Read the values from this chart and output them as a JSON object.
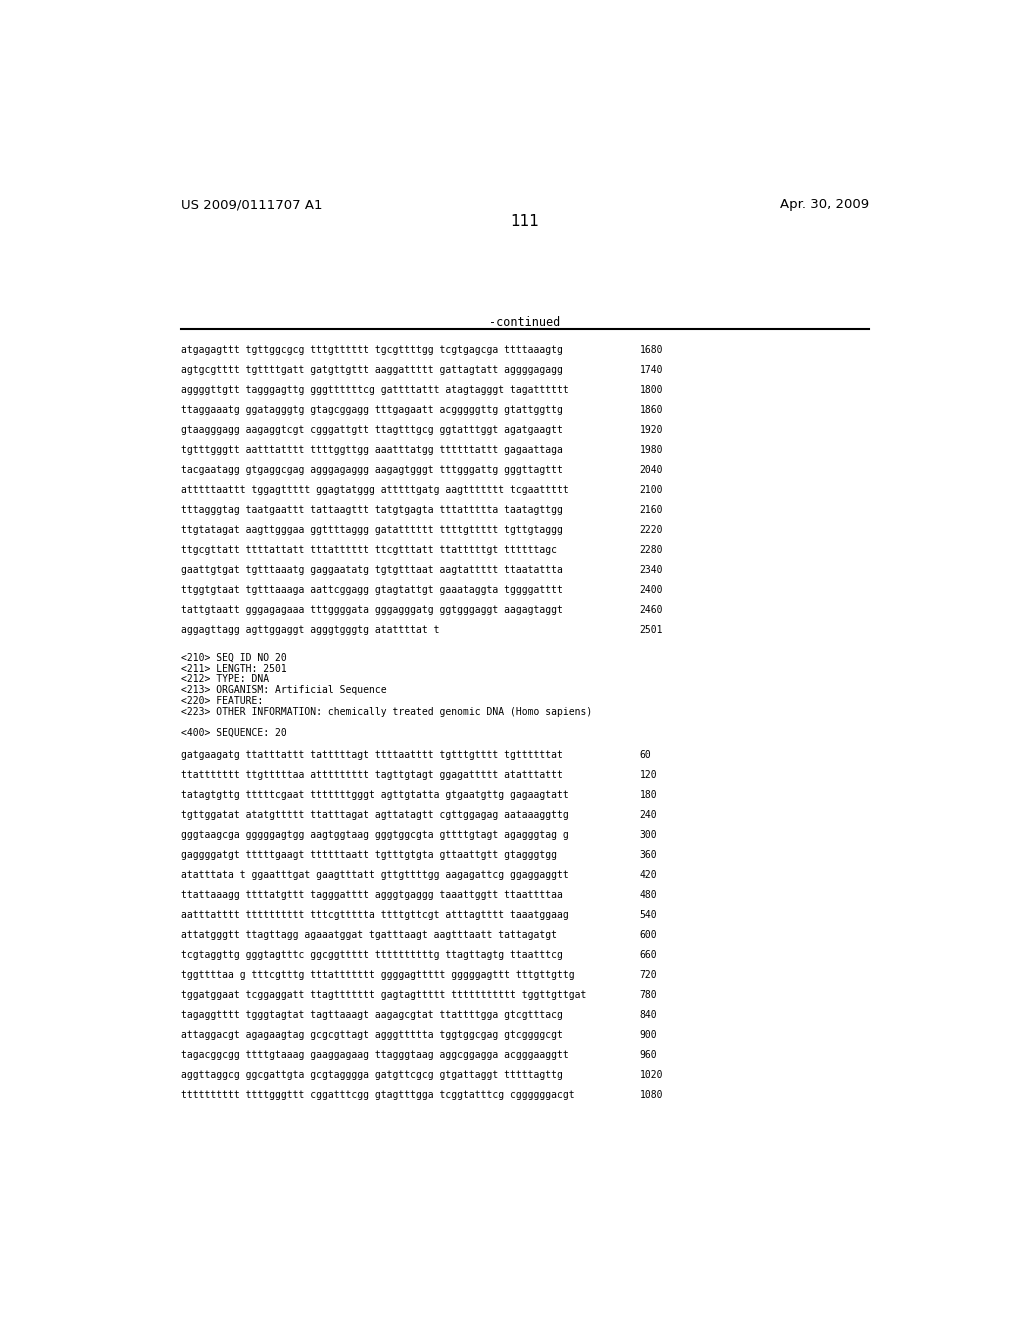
{
  "header_left": "US 2009/0111707 A1",
  "header_right": "Apr. 30, 2009",
  "page_number": "111",
  "continued_label": "-continued",
  "background_color": "#ffffff",
  "text_color": "#000000",
  "lines_section1": [
    [
      "atgagagttt tgttggcgcg tttgtttttt tgcgttttgg tcgtgagcga ttttaaagtg",
      "1680"
    ],
    [
      "agtgcgtttt tgttttgatt gatgttgttt aaggattttt gattagtatt aggggagagg",
      "1740"
    ],
    [
      "aggggttgtt tagggagttg gggttttttcg gattttattt atagtagggt tagatttttt",
      "1800"
    ],
    [
      "ttaggaaatg ggatagggtg gtagcggagg tttgagaatt acgggggttg gtattggttg",
      "1860"
    ],
    [
      "gtaagggagg aagaggtcgt cgggattgtt ttagtttgcg ggtatttggt agatgaagtt",
      "1920"
    ],
    [
      "tgtttgggtt aatttatttt ttttggttgg aaatttatgg ttttttattt gagaattaga",
      "1980"
    ],
    [
      "tacgaatagg gtgaggcgag agggagaggg aagagtgggt tttgggattg gggttagttt",
      "2040"
    ],
    [
      "atttttaattt tggagttttt ggagtatggg atttttgatg aagttttttt tcgaattttt",
      "2100"
    ],
    [
      "tttagggtag taatgaattt tattaagttt tatgtgagta tttattttta taatagttgg",
      "2160"
    ],
    [
      "ttgtatagat aagttgggaa ggttttaggg gatatttttt ttttgttttt tgttgtaggg",
      "2220"
    ],
    [
      "ttgcgttatt ttttattatt tttatttttt ttcgtttatt ttatttttgt ttttttagc",
      "2280"
    ],
    [
      "gaattgtgat tgtttaaatg gaggaatatg tgtgtttaat aagtattttt ttaatattta",
      "2340"
    ],
    [
      "ttggtgtaat tgtttaaaga aattcggagg gtagtattgt gaaataggta tggggatttt",
      "2400"
    ],
    [
      "tattgtaatt gggagagaaa tttggggata gggagggatg ggtgggaggt aagagtaggt",
      "2460"
    ],
    [
      "aggagttagg agttggaggt agggtgggtg atattttat t",
      "2501"
    ]
  ],
  "metadata_lines": [
    "<210> SEQ ID NO 20",
    "<211> LENGTH: 2501",
    "<212> TYPE: DNA",
    "<213> ORGANISM: Artificial Sequence",
    "<220> FEATURE:",
    "<223> OTHER INFORMATION: chemically treated genomic DNA (Homo sapiens)",
    "",
    "<400> SEQUENCE: 20"
  ],
  "lines_section2": [
    [
      "gatgaagatg ttatttattt tatttttagt ttttaatttt tgtttgtttt tgttttttat",
      "60"
    ],
    [
      "ttattttttt ttgtttttaa attttttttt tagttgtagt ggagattttt atatttattt",
      "120"
    ],
    [
      "tatagtgttg tttttcgaat tttttttgggt agttgtatta gtgaatgttg gagaagtatt",
      "180"
    ],
    [
      "tgttggatat atatgttttt ttatttagat agttatagtt cgttggagag aataaaggttg",
      "240"
    ],
    [
      "gggtaagcga gggggagtgg aagtggtaag gggtggcgta gttttgtagt agagggtag g",
      "300"
    ],
    [
      "gaggggatgt tttttgaagt ttttttaatt tgtttgtgta gttaattgtt gtagggtgg",
      "360"
    ],
    [
      "atatttata t ggaatttgat gaagtttatt gttgttttgg aagagattcg ggaggaggtt",
      "420"
    ],
    [
      "ttattaaagg ttttatgttt tagggatttt agggtgaggg taaattggtt ttaattttaa",
      "480"
    ],
    [
      "aatttatttt tttttttttt tttcgttttta ttttgttcgt atttagtttt taaatggaag",
      "540"
    ],
    [
      "attatgggtt ttagttagg agaaatggat tgatttaagt aagtttaatt tattagatgt",
      "600"
    ],
    [
      "tcgtaggttg gggtagtttc ggcggttttt ttttttttttg ttagttagtg ttaatttcg",
      "660"
    ],
    [
      "tggttttaa g tttcgtttg tttattttttt ggggagttttt gggggagttt tttgttgttg",
      "720"
    ],
    [
      "tggatggaat tcggaggatt ttagttttttt gagtagttttt ttttttttttt tggttgttgat",
      "780"
    ],
    [
      "tagaggtttt tgggtagtat tagttaaagt aagagcgtat ttattttgga gtcgtttacg",
      "840"
    ],
    [
      "attaggacgt agagaagtag gcgcgttagt agggttttta tggtggcgag gtcggggcgt",
      "900"
    ],
    [
      "tagacggcgg ttttgtaaag gaaggagaag ttagggtaag aggcggagga acgggaaggtt",
      "960"
    ],
    [
      "aggttaggcg ggcgattgta gcgtagggga gatgttcgcg gtgattaggt tttttagttg",
      "1020"
    ],
    [
      "tttttttttt ttttgggttt cggatttcgg gtagtttgga tcggtatttcg cggggggacgt",
      "1080"
    ]
  ]
}
